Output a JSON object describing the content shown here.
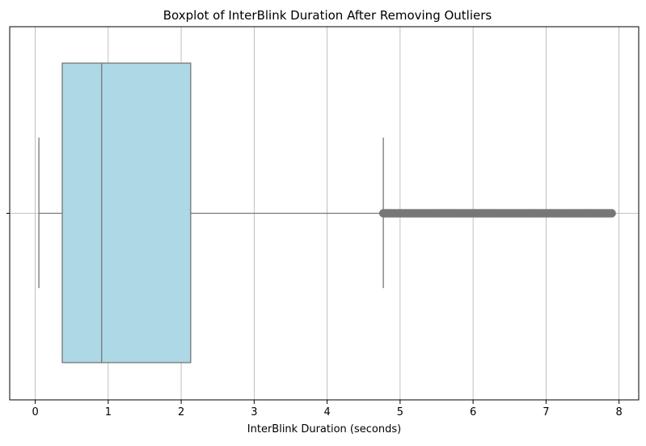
{
  "chart_data": {
    "type": "boxplot",
    "orientation": "horizontal",
    "title": "Boxplot of InterBlink Duration After Removing Outliers",
    "xlabel": "InterBlink Duration (seconds)",
    "ylabel": "",
    "xlim": [
      -0.35,
      8.27
    ],
    "xticks": [
      0,
      1,
      2,
      3,
      4,
      5,
      6,
      7,
      8
    ],
    "grid": true,
    "box": {
      "whisker_low": 0.05,
      "q1": 0.37,
      "median": 0.91,
      "q3": 2.13,
      "whisker_high": 4.77
    },
    "outliers_range": [
      4.77,
      7.9
    ],
    "colors": {
      "box_fill": "#add8e6",
      "line": "#777777",
      "outlier": "#777777",
      "grid": "#b0b0b0"
    }
  }
}
